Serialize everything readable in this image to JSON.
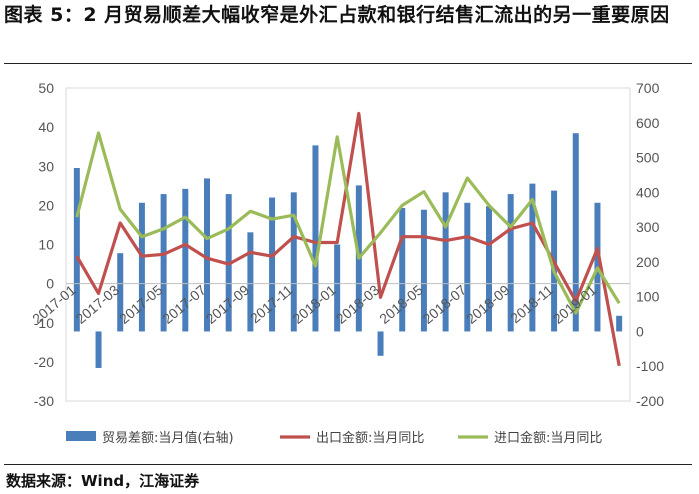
{
  "title": "图表 5：2 月贸易顺差大幅收窄是外汇占款和银行结售汇流出的另一重要原因",
  "source": "数据来源：Wind，江海证券",
  "chart_data": {
    "type": "bar+line",
    "x": [
      "2017-01",
      "2017-02",
      "2017-03",
      "2017-04",
      "2017-05",
      "2017-06",
      "2017-07",
      "2017-08",
      "2017-09",
      "2017-10",
      "2017-11",
      "2017-12",
      "2018-01",
      "2018-02",
      "2018-03",
      "2018-04",
      "2018-05",
      "2018-06",
      "2018-07",
      "2018-08",
      "2018-09",
      "2018-10",
      "2018-11",
      "2018-12",
      "2019-01",
      "2019-02"
    ],
    "xticks": [
      "2017-01",
      "2017-03",
      "2017-05",
      "2017-07",
      "2017-09",
      "2017-11",
      "2018-01",
      "2018-03",
      "2018-05",
      "2018-07",
      "2018-09",
      "2018-11",
      "2019-01"
    ],
    "ylim_left": [
      -30,
      50
    ],
    "yticks_left": [
      -30,
      -20,
      -10,
      0,
      10,
      20,
      30,
      40,
      50
    ],
    "ylim_right": [
      -200,
      700
    ],
    "yticks_right": [
      -200,
      -100,
      0,
      100,
      200,
      300,
      400,
      500,
      600,
      700
    ],
    "series": [
      {
        "name": "贸易差额:当月值(右轴)",
        "type": "bar",
        "axis": "right",
        "color": "#4a7ebb",
        "values": [
          470,
          -105,
          225,
          370,
          395,
          410,
          440,
          395,
          285,
          385,
          400,
          535,
          250,
          420,
          -70,
          355,
          350,
          400,
          370,
          360,
          395,
          425,
          405,
          570,
          370,
          45
        ]
      },
      {
        "name": "出口金额:当月同比",
        "type": "line",
        "axis": "left",
        "color": "#c0504d",
        "values": [
          7,
          -2.5,
          15.5,
          7,
          7.5,
          10,
          6.5,
          5,
          8,
          7,
          12,
          10.5,
          10.5,
          43.5,
          -3.5,
          12,
          12,
          11,
          12,
          10,
          14,
          15.5,
          5.5,
          -4.5,
          9,
          -21
        ]
      },
      {
        "name": "进口金额:当月同比",
        "type": "line",
        "axis": "left",
        "color": "#9bbb59",
        "values": [
          17,
          38.5,
          19,
          12,
          14,
          17,
          11.5,
          14,
          18.5,
          16.5,
          17.5,
          4.5,
          37.5,
          6.5,
          13,
          20,
          23.5,
          14.5,
          27,
          20,
          14.5,
          21.5,
          3,
          -7.5,
          4,
          -5
        ]
      }
    ]
  }
}
